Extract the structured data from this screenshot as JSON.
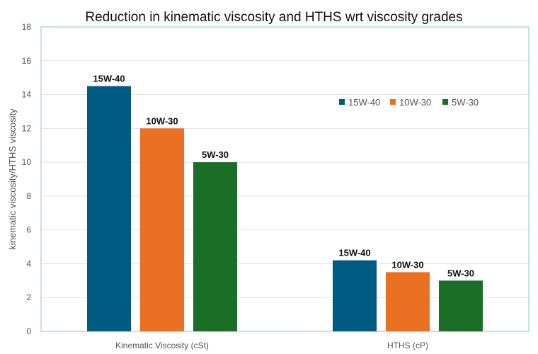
{
  "chart_data": {
    "type": "bar",
    "title": "Reduction  in kinematic viscosity and HTHS wrt viscosity grades",
    "xlabel": "",
    "ylabel": "kinematic viscosity/HTHS viscosity",
    "ylim": [
      0,
      18
    ],
    "yticks": [
      0,
      2,
      4,
      6,
      8,
      10,
      12,
      14,
      16,
      18
    ],
    "grid": true,
    "legend_position": "top-right",
    "categories": [
      "Kinematic Viscosity (cSt)",
      "HTHS (cP)"
    ],
    "series": [
      {
        "name": "15W-40",
        "color": "#005b82",
        "values": [
          14.5,
          4.2
        ]
      },
      {
        "name": "10W-30",
        "color": "#ea7024",
        "values": [
          12.0,
          3.5
        ]
      },
      {
        "name": "5W-30",
        "color": "#1b6e26",
        "values": [
          10.0,
          3.0
        ]
      }
    ]
  }
}
